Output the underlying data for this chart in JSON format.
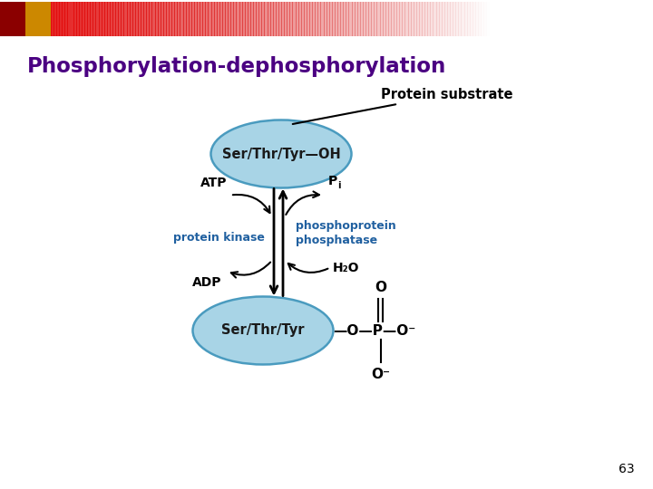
{
  "title": "Phosphorylation-dephosphorylation",
  "title_color": "#4B0082",
  "page_number": "63",
  "background_color": "#ffffff",
  "ellipse_facecolor": "#a8d4e6",
  "ellipse_edgecolor": "#4a9bbf",
  "top_ellipse_label": "Ser/Thr/Tyr—OH",
  "bottom_ellipse_label": "Ser/Thr/Tyr",
  "protein_substrate_label": "Protein substrate",
  "atp_label": "ATP",
  "adp_label": "ADP",
  "pi_label": "P",
  "pi_sub": "i",
  "h2o_label": "H₂O",
  "kinase_label": "protein kinase",
  "phosphatase_label": "phosphoprotein\nphosphatase",
  "kinase_color": "#2060a0",
  "phosphatase_color": "#2060a0",
  "arrow_color": "#000000",
  "text_color": "#000000",
  "header_dark_color": "#cc2200",
  "header_square1": "#8B0000",
  "header_square2": "#cc8800"
}
